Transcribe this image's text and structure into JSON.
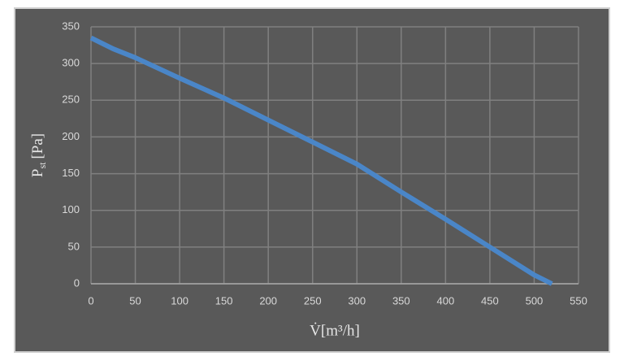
{
  "chart_data": {
    "type": "line",
    "x_label": "V̇[m³/h]",
    "y_label": [
      "P",
      "st",
      "[Pa]"
    ],
    "x": [
      0,
      25,
      50,
      100,
      150,
      200,
      250,
      300,
      350,
      400,
      450,
      500,
      520
    ],
    "series": [
      {
        "color": "#4a86c8",
        "values": [
          335,
          320,
          308,
          280,
          253,
          223,
          193,
          163,
          125,
          88,
          50,
          12,
          0
        ]
      }
    ],
    "xlim": [
      0,
      550
    ],
    "xticks": [
      0,
      50,
      100,
      150,
      200,
      250,
      300,
      350,
      400,
      450,
      500,
      550
    ],
    "ylim": [
      0,
      350
    ],
    "yticks": [
      0,
      50,
      100,
      150,
      200,
      250,
      300,
      350
    ],
    "grid": true
  }
}
